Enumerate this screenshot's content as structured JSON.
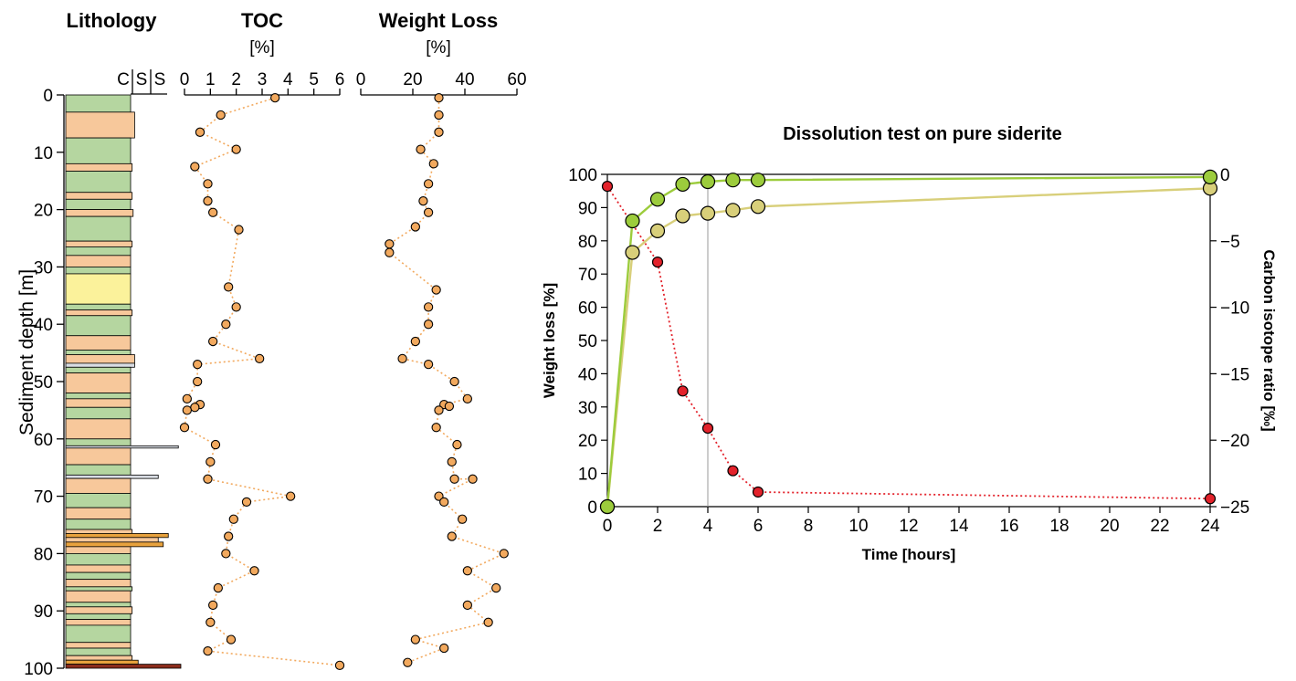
{
  "chart_data": [
    {
      "type": "scatter",
      "panel": "lithology-log",
      "title": "Lithology",
      "column_labels": [
        "C",
        "S",
        "S"
      ],
      "ylabel": "Sediment depth [m]",
      "ylim": [
        0,
        100
      ],
      "yticks": [
        0,
        10,
        20,
        30,
        40,
        50,
        60,
        70,
        80,
        90,
        100
      ],
      "colors": {
        "clay": "#b5d6a0",
        "silt": "#f7c89b",
        "sand": "#fbf29b",
        "carbonate": "#d9dde4",
        "siderite": "#e8a23d",
        "base": "#8a2c1c"
      },
      "beds": [
        {
          "top": 0,
          "bottom": 3,
          "lith": "clay",
          "grain": 0
        },
        {
          "top": 3,
          "bottom": 7.5,
          "lith": "silt",
          "grain": 0.08
        },
        {
          "top": 7.5,
          "bottom": 12,
          "lith": "clay",
          "grain": 0
        },
        {
          "top": 12,
          "bottom": 13.3,
          "lith": "silt",
          "grain": 0.03
        },
        {
          "top": 13.3,
          "bottom": 17,
          "lith": "clay",
          "grain": 0
        },
        {
          "top": 17,
          "bottom": 18.2,
          "lith": "silt",
          "grain": 0.03
        },
        {
          "top": 18.2,
          "bottom": 20,
          "lith": "clay",
          "grain": 0
        },
        {
          "top": 20,
          "bottom": 21.2,
          "lith": "silt",
          "grain": 0.05
        },
        {
          "top": 21.2,
          "bottom": 25.5,
          "lith": "clay",
          "grain": 0
        },
        {
          "top": 25.5,
          "bottom": 26.5,
          "lith": "silt",
          "grain": 0.03
        },
        {
          "top": 26.5,
          "bottom": 28,
          "lith": "clay",
          "grain": 0
        },
        {
          "top": 28,
          "bottom": 30,
          "lith": "silt",
          "grain": 0
        },
        {
          "top": 30,
          "bottom": 31.2,
          "lith": "clay",
          "grain": 0
        },
        {
          "top": 31.2,
          "bottom": 36.5,
          "lith": "sand",
          "grain": 0
        },
        {
          "top": 36.5,
          "bottom": 37.5,
          "lith": "clay",
          "grain": 0
        },
        {
          "top": 37.5,
          "bottom": 38.5,
          "lith": "silt",
          "grain": 0.03
        },
        {
          "top": 38.5,
          "bottom": 42,
          "lith": "clay",
          "grain": 0
        },
        {
          "top": 42,
          "bottom": 44.5,
          "lith": "silt",
          "grain": 0
        },
        {
          "top": 44.5,
          "bottom": 45.3,
          "lith": "clay",
          "grain": 0
        },
        {
          "top": 45.3,
          "bottom": 46.8,
          "lith": "silt",
          "grain": 0.08
        },
        {
          "top": 46.8,
          "bottom": 47.5,
          "lith": "carbonate",
          "grain": 0.08
        },
        {
          "top": 47.5,
          "bottom": 48.5,
          "lith": "clay",
          "grain": 0
        },
        {
          "top": 48.5,
          "bottom": 52,
          "lith": "silt",
          "grain": 0
        },
        {
          "top": 52,
          "bottom": 53,
          "lith": "clay",
          "grain": 0
        },
        {
          "top": 53,
          "bottom": 54.5,
          "lith": "silt",
          "grain": 0
        },
        {
          "top": 54.5,
          "bottom": 56.5,
          "lith": "clay",
          "grain": 0
        },
        {
          "top": 56.5,
          "bottom": 60,
          "lith": "silt",
          "grain": 0
        },
        {
          "top": 60,
          "bottom": 61.2,
          "lith": "clay",
          "grain": 0
        },
        {
          "top": 61.2,
          "bottom": 61.6,
          "lith": "carbonate",
          "grain": 0.95
        },
        {
          "top": 61.6,
          "bottom": 64.5,
          "lith": "silt",
          "grain": 0
        },
        {
          "top": 64.5,
          "bottom": 66.3,
          "lith": "clay",
          "grain": 0
        },
        {
          "top": 66.3,
          "bottom": 66.9,
          "lith": "carbonate",
          "grain": 0.55
        },
        {
          "top": 66.9,
          "bottom": 69.5,
          "lith": "silt",
          "grain": 0
        },
        {
          "top": 69.5,
          "bottom": 72,
          "lith": "clay",
          "grain": 0
        },
        {
          "top": 72,
          "bottom": 74,
          "lith": "silt",
          "grain": 0
        },
        {
          "top": 74,
          "bottom": 75.8,
          "lith": "clay",
          "grain": 0
        },
        {
          "top": 75.8,
          "bottom": 76.5,
          "lith": "silt",
          "grain": 0.03
        },
        {
          "top": 76.5,
          "bottom": 77.2,
          "lith": "siderite",
          "grain": 0.75
        },
        {
          "top": 77.2,
          "bottom": 78,
          "lith": "silt",
          "grain": 0.55
        },
        {
          "top": 78,
          "bottom": 78.8,
          "lith": "siderite",
          "grain": 0.65
        },
        {
          "top": 78.8,
          "bottom": 80,
          "lith": "silt",
          "grain": 0
        },
        {
          "top": 80,
          "bottom": 82,
          "lith": "clay",
          "grain": 0
        },
        {
          "top": 82,
          "bottom": 83.3,
          "lith": "silt",
          "grain": 0
        },
        {
          "top": 83.3,
          "bottom": 84.5,
          "lith": "clay",
          "grain": 0
        },
        {
          "top": 84.5,
          "bottom": 85.8,
          "lith": "silt",
          "grain": 0
        },
        {
          "top": 85.8,
          "bottom": 86.5,
          "lith": "clay",
          "grain": 0.03
        },
        {
          "top": 86.5,
          "bottom": 88.5,
          "lith": "silt",
          "grain": 0
        },
        {
          "top": 88.5,
          "bottom": 89.3,
          "lith": "clay",
          "grain": 0
        },
        {
          "top": 89.3,
          "bottom": 90.5,
          "lith": "silt",
          "grain": 0.03
        },
        {
          "top": 90.5,
          "bottom": 91.5,
          "lith": "clay",
          "grain": 0
        },
        {
          "top": 91.5,
          "bottom": 92.5,
          "lith": "silt",
          "grain": 0
        },
        {
          "top": 92.5,
          "bottom": 95.5,
          "lith": "clay",
          "grain": 0
        },
        {
          "top": 95.5,
          "bottom": 96.5,
          "lith": "silt",
          "grain": 0
        },
        {
          "top": 96.5,
          "bottom": 97.8,
          "lith": "clay",
          "grain": 0
        },
        {
          "top": 97.8,
          "bottom": 98.6,
          "lith": "silt",
          "grain": 0.03
        },
        {
          "top": 98.6,
          "bottom": 99.3,
          "lith": "siderite",
          "grain": 0.15
        },
        {
          "top": 99.3,
          "bottom": 100,
          "lith": "base",
          "grain": 1.0
        }
      ]
    },
    {
      "type": "line",
      "panel": "toc-profile",
      "title": "TOC",
      "unit": "[%]",
      "xlim": [
        0,
        6
      ],
      "xticks": [
        0,
        1,
        2,
        3,
        4,
        5,
        6
      ],
      "ylim": [
        0,
        100
      ],
      "grid": false,
      "color": "#f2a95e",
      "points": [
        {
          "depth": 0.5,
          "toc": 3.5
        },
        {
          "depth": 3.5,
          "toc": 1.4
        },
        {
          "depth": 6.5,
          "toc": 0.6
        },
        {
          "depth": 9.5,
          "toc": 2.0
        },
        {
          "depth": 12.5,
          "toc": 0.4
        },
        {
          "depth": 15.5,
          "toc": 0.9
        },
        {
          "depth": 18.5,
          "toc": 0.9
        },
        {
          "depth": 20.5,
          "toc": 1.1
        },
        {
          "depth": 23.5,
          "toc": 2.1
        },
        {
          "depth": 33.5,
          "toc": 1.7
        },
        {
          "depth": 37,
          "toc": 2.0
        },
        {
          "depth": 40,
          "toc": 1.6
        },
        {
          "depth": 43,
          "toc": 1.1
        },
        {
          "depth": 46,
          "toc": 2.9
        },
        {
          "depth": 47,
          "toc": 0.5
        },
        {
          "depth": 50,
          "toc": 0.5
        },
        {
          "depth": 53,
          "toc": 0.1
        },
        {
          "depth": 54,
          "toc": 0.6
        },
        {
          "depth": 54.5,
          "toc": 0.4
        },
        {
          "depth": 55,
          "toc": 0.1
        },
        {
          "depth": 58,
          "toc": 0.0
        },
        {
          "depth": 61,
          "toc": 1.2
        },
        {
          "depth": 64,
          "toc": 1.0
        },
        {
          "depth": 67,
          "toc": 0.9
        },
        {
          "depth": 70,
          "toc": 4.1
        },
        {
          "depth": 71,
          "toc": 2.4
        },
        {
          "depth": 74,
          "toc": 1.9
        },
        {
          "depth": 77,
          "toc": 1.7
        },
        {
          "depth": 80,
          "toc": 1.6
        },
        {
          "depth": 83,
          "toc": 2.7
        },
        {
          "depth": 86,
          "toc": 1.3
        },
        {
          "depth": 89,
          "toc": 1.1
        },
        {
          "depth": 92,
          "toc": 1.0
        },
        {
          "depth": 95,
          "toc": 1.8
        },
        {
          "depth": 97,
          "toc": 0.9
        },
        {
          "depth": 99.5,
          "toc": 6.0
        }
      ]
    },
    {
      "type": "line",
      "panel": "weight-loss-profile",
      "title": "Weight Loss",
      "unit": "[%]",
      "xlim": [
        0,
        60
      ],
      "xticks": [
        0,
        20,
        40,
        60
      ],
      "ylim": [
        0,
        100
      ],
      "grid": false,
      "color": "#f2a95e",
      "points": [
        {
          "depth": 0.5,
          "wl": 30
        },
        {
          "depth": 3.5,
          "wl": 30
        },
        {
          "depth": 6.5,
          "wl": 30
        },
        {
          "depth": 9.5,
          "wl": 23
        },
        {
          "depth": 12,
          "wl": 28
        },
        {
          "depth": 15.5,
          "wl": 26
        },
        {
          "depth": 18.5,
          "wl": 24
        },
        {
          "depth": 20.5,
          "wl": 26
        },
        {
          "depth": 23,
          "wl": 21
        },
        {
          "depth": 26,
          "wl": 11
        },
        {
          "depth": 27.5,
          "wl": 11
        },
        {
          "depth": 34,
          "wl": 29
        },
        {
          "depth": 37,
          "wl": 26
        },
        {
          "depth": 40,
          "wl": 26
        },
        {
          "depth": 43,
          "wl": 21
        },
        {
          "depth": 46,
          "wl": 16
        },
        {
          "depth": 47,
          "wl": 26
        },
        {
          "depth": 50,
          "wl": 36
        },
        {
          "depth": 53,
          "wl": 41
        },
        {
          "depth": 54,
          "wl": 32
        },
        {
          "depth": 54.3,
          "wl": 34
        },
        {
          "depth": 55,
          "wl": 30
        },
        {
          "depth": 58,
          "wl": 29
        },
        {
          "depth": 61,
          "wl": 37
        },
        {
          "depth": 64,
          "wl": 35
        },
        {
          "depth": 67,
          "wl": 36
        },
        {
          "depth": 67,
          "wl": 43
        },
        {
          "depth": 70,
          "wl": 30
        },
        {
          "depth": 71,
          "wl": 32
        },
        {
          "depth": 74,
          "wl": 39
        },
        {
          "depth": 77,
          "wl": 35
        },
        {
          "depth": 80,
          "wl": 55
        },
        {
          "depth": 83,
          "wl": 41
        },
        {
          "depth": 86,
          "wl": 52
        },
        {
          "depth": 89,
          "wl": 41
        },
        {
          "depth": 92,
          "wl": 49
        },
        {
          "depth": 95,
          "wl": 21
        },
        {
          "depth": 96.5,
          "wl": 32
        },
        {
          "depth": 99,
          "wl": 18
        }
      ]
    },
    {
      "type": "line",
      "panel": "dissolution-test",
      "title": "Dissolution test on pure siderite",
      "xlabel": "Time [hours]",
      "ylabel": "Weight loss [%]",
      "y2label": "Carbon isotope ratio [‰]",
      "xlim": [
        0,
        24
      ],
      "ylim": [
        0,
        100
      ],
      "y2lim": [
        -25,
        0
      ],
      "xticks": [
        0,
        2,
        4,
        6,
        8,
        10,
        12,
        14,
        16,
        18,
        20,
        22,
        24
      ],
      "yticks": [
        0,
        10,
        20,
        30,
        40,
        50,
        60,
        70,
        80,
        90,
        100
      ],
      "y2ticks": [
        0,
        -5,
        -10,
        -15,
        -20,
        -25
      ],
      "grid": false,
      "reference_line_x": 4,
      "series": [
        {
          "axis": "left",
          "style": "solid",
          "color": "#9ccc3c",
          "x": [
            0,
            1,
            2,
            3,
            4,
            5,
            6,
            24
          ],
          "y": [
            0,
            86,
            92.5,
            97,
            97.8,
            98.3,
            98.3,
            99.2
          ]
        },
        {
          "axis": "left",
          "style": "solid",
          "color": "#d8cf7a",
          "x": [
            0,
            1,
            2,
            3,
            4,
            5,
            6,
            24
          ],
          "y": [
            0,
            76.5,
            83,
            87.5,
            88.3,
            89.2,
            90.3,
            95.8
          ]
        },
        {
          "axis": "right",
          "style": "dotted",
          "color": "#e3222b",
          "x": [
            0,
            2,
            3,
            4,
            5,
            6,
            24
          ],
          "y": [
            -0.9,
            -6.6,
            -16.3,
            -19.1,
            -22.3,
            -23.9,
            -24.4
          ]
        }
      ]
    }
  ]
}
